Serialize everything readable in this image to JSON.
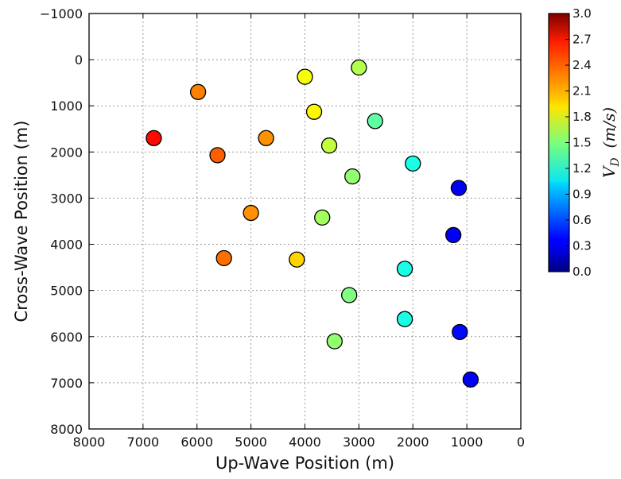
{
  "chart_data": {
    "type": "scatter",
    "xlabel": "Up-Wave Position (m)",
    "ylabel": "Cross-Wave Position (m)",
    "xlim": [
      8000,
      0
    ],
    "ylim": [
      8000,
      -1000
    ],
    "x_inverted": true,
    "y_inverted": true,
    "x_ticks": [
      8000,
      7000,
      6000,
      5000,
      4000,
      3000,
      2000,
      1000,
      0
    ],
    "y_ticks": [
      -1000,
      0,
      1000,
      2000,
      3000,
      4000,
      5000,
      6000,
      7000,
      8000
    ],
    "x_tick_labels": [
      "8000",
      "7000",
      "6000",
      "5000",
      "4000",
      "3000",
      "2000",
      "1000",
      "0"
    ],
    "y_tick_labels": [
      "−1000",
      "0",
      "1000",
      "2000",
      "3000",
      "4000",
      "5000",
      "6000",
      "7000",
      "8000"
    ],
    "grid": true,
    "colorbar": {
      "label": "V_D  (m/s)",
      "min": 0.0,
      "max": 3.0,
      "ticks": [
        0.0,
        0.3,
        0.6,
        0.9,
        1.2,
        1.5,
        1.8,
        2.1,
        2.4,
        2.7,
        3.0
      ],
      "tick_labels": [
        "0.0",
        "0.3",
        "0.6",
        "0.9",
        "1.2",
        "1.5",
        "1.8",
        "2.1",
        "2.4",
        "2.7",
        "3.0"
      ],
      "colormap": "jet"
    },
    "points": [
      {
        "x": 6800,
        "y": 1700,
        "v": 2.6
      },
      {
        "x": 5980,
        "y": 700,
        "v": 2.25
      },
      {
        "x": 5620,
        "y": 2070,
        "v": 2.35
      },
      {
        "x": 4720,
        "y": 1700,
        "v": 2.2
      },
      {
        "x": 5000,
        "y": 3320,
        "v": 2.2
      },
      {
        "x": 5500,
        "y": 4300,
        "v": 2.3
      },
      {
        "x": 4150,
        "y": 4330,
        "v": 2.0
      },
      {
        "x": 4000,
        "y": 370,
        "v": 1.85
      },
      {
        "x": 3830,
        "y": 1130,
        "v": 1.9
      },
      {
        "x": 3550,
        "y": 1860,
        "v": 1.7
      },
      {
        "x": 3680,
        "y": 3420,
        "v": 1.6
      },
      {
        "x": 3120,
        "y": 2530,
        "v": 1.55
      },
      {
        "x": 3000,
        "y": 170,
        "v": 1.65
      },
      {
        "x": 2700,
        "y": 1330,
        "v": 1.4
      },
      {
        "x": 3180,
        "y": 5100,
        "v": 1.5
      },
      {
        "x": 3450,
        "y": 6100,
        "v": 1.55
      },
      {
        "x": 2000,
        "y": 2250,
        "v": 1.2
      },
      {
        "x": 2150,
        "y": 4530,
        "v": 1.2
      },
      {
        "x": 2150,
        "y": 5620,
        "v": 1.2
      },
      {
        "x": 1150,
        "y": 2780,
        "v": 0.35
      },
      {
        "x": 1250,
        "y": 3800,
        "v": 0.35
      },
      {
        "x": 1130,
        "y": 5900,
        "v": 0.4
      },
      {
        "x": 930,
        "y": 6930,
        "v": 0.35
      }
    ]
  }
}
